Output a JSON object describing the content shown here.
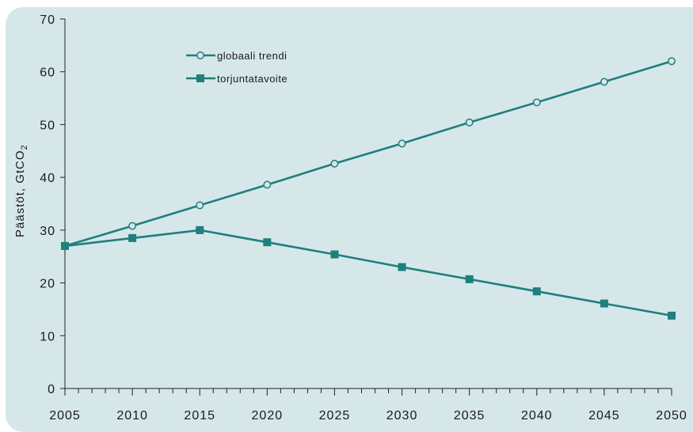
{
  "chart_data": {
    "type": "line",
    "title": "",
    "xlabel": "",
    "ylabel": "Päästöt, GtCO",
    "ylabel_subscript": "2",
    "x": [
      2005,
      2010,
      2015,
      2020,
      2025,
      2030,
      2035,
      2040,
      2045,
      2050
    ],
    "xlim": [
      2005,
      2050
    ],
    "ylim": [
      0,
      70
    ],
    "y_ticks": [
      0,
      10,
      20,
      30,
      40,
      50,
      60,
      70
    ],
    "x_ticks": [
      2005,
      2010,
      2015,
      2020,
      2025,
      2030,
      2035,
      2040,
      2045,
      2050
    ],
    "grid": false,
    "legend_position": "top-left",
    "series": [
      {
        "name": "globaali trendi",
        "marker": "open-circle",
        "color": "#1f7f7c",
        "values": [
          27.0,
          30.8,
          34.7,
          38.6,
          42.6,
          46.4,
          50.4,
          54.2,
          58.1,
          62.0
        ]
      },
      {
        "name": "torjuntatavoite",
        "marker": "filled-square",
        "color": "#1f7f7c",
        "values": [
          27.0,
          28.5,
          30.0,
          27.7,
          25.4,
          23.0,
          20.7,
          18.4,
          16.1,
          13.8
        ]
      }
    ]
  }
}
